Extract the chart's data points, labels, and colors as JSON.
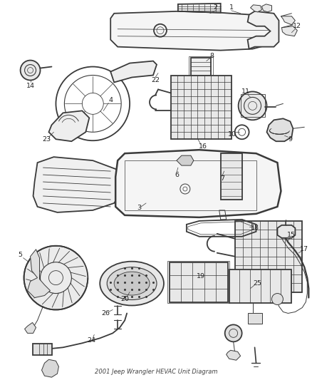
{
  "title": "2001 Jeep Wrangler HEVAC Unit Diagram",
  "bg_color": "#ffffff",
  "line_color": "#3a3a3a",
  "label_color": "#222222",
  "fig_width": 4.38,
  "fig_height": 5.33,
  "dpi": 100,
  "label_fs": 6.8,
  "lw_main": 1.3,
  "lw_thin": 0.7,
  "lw_thick": 1.8
}
